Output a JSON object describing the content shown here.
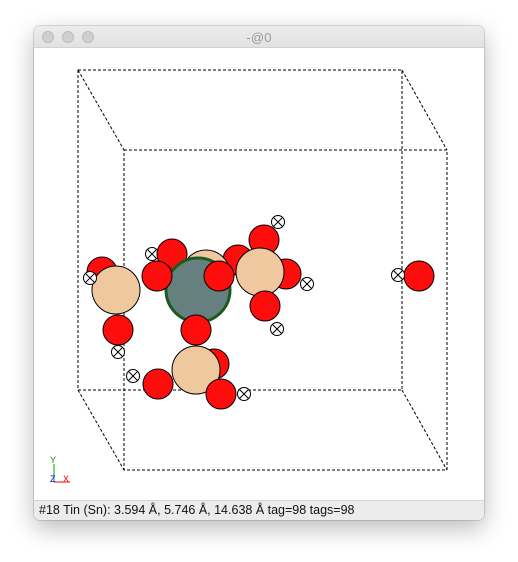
{
  "window": {
    "title": "-@0"
  },
  "axes": {
    "x_label": "X",
    "y_label": "Y",
    "z_label": "Z"
  },
  "status": {
    "text": "#18 Tin (Sn): 3.594 Å, 5.746 Å, 14.638 Å  tag=98 tags=98"
  },
  "colors": {
    "oxygen": "#ff0d0d",
    "tin": "#668080",
    "tin_selected_outline": "#1e5a1e",
    "sodium_like": "#f0c8a0",
    "ghost": "#ffffff",
    "axis_x": "#ff0000",
    "axis_y": "#00a000",
    "axis_z": "#0000ff"
  },
  "atoms": [
    {
      "element": "O",
      "kind": "oxygen"
    },
    {
      "element": "O",
      "kind": "oxygen"
    },
    {
      "element": "O",
      "kind": "oxygen"
    },
    {
      "element": "O",
      "kind": "oxygen"
    },
    {
      "element": "O",
      "kind": "oxygen"
    },
    {
      "element": "O",
      "kind": "oxygen"
    },
    {
      "element": "O",
      "kind": "oxygen"
    },
    {
      "element": "O",
      "kind": "oxygen"
    },
    {
      "element": "O",
      "kind": "oxygen"
    },
    {
      "element": "O",
      "kind": "oxygen"
    },
    {
      "element": "O",
      "kind": "oxygen"
    },
    {
      "element": "O",
      "kind": "oxygen"
    },
    {
      "element": "O",
      "kind": "oxygen"
    },
    {
      "element": "O",
      "kind": "oxygen"
    },
    {
      "element": "Sn",
      "kind": "tin",
      "selected": true
    },
    {
      "element": "X",
      "kind": "sodium_like"
    },
    {
      "element": "X",
      "kind": "sodium_like"
    },
    {
      "element": "X",
      "kind": "sodium_like"
    },
    {
      "element": "X",
      "kind": "sodium_like"
    },
    {
      "element": "ghost",
      "kind": "ghost"
    },
    {
      "element": "ghost",
      "kind": "ghost"
    },
    {
      "element": "ghost",
      "kind": "ghost"
    },
    {
      "element": "ghost",
      "kind": "ghost"
    },
    {
      "element": "ghost",
      "kind": "ghost"
    },
    {
      "element": "ghost",
      "kind": "ghost"
    },
    {
      "element": "ghost",
      "kind": "ghost"
    },
    {
      "element": "ghost",
      "kind": "ghost"
    },
    {
      "element": "ghost",
      "kind": "ghost"
    }
  ]
}
